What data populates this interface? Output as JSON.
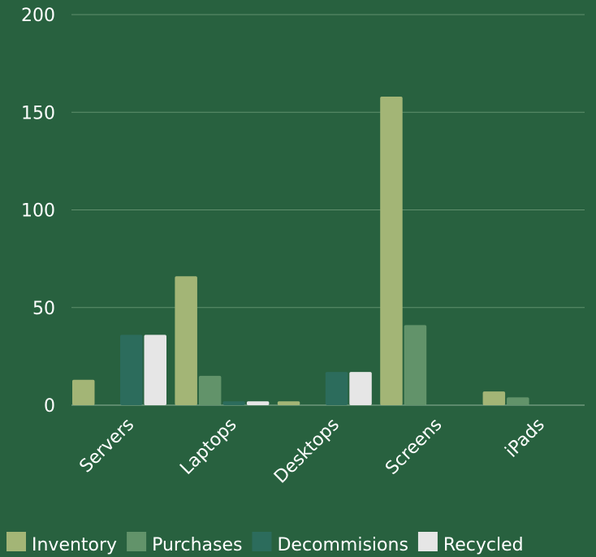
{
  "chart_data": {
    "type": "bar",
    "categories": [
      "Servers",
      "Laptops",
      "Desktops",
      "Screens",
      "iPads"
    ],
    "series": [
      {
        "name": "Inventory",
        "color": "#a3b576",
        "values": [
          13,
          66,
          2,
          158,
          7
        ]
      },
      {
        "name": "Purchases",
        "color": "#62936a",
        "values": [
          0,
          15,
          0,
          41,
          4
        ]
      },
      {
        "name": "Decommisions",
        "color": "#2c6c5c",
        "values": [
          36,
          2,
          17,
          0,
          0
        ]
      },
      {
        "name": "Recycled",
        "color": "#e6e6e6",
        "values": [
          36,
          2,
          17,
          0,
          0
        ]
      }
    ],
    "ylim": [
      0,
      200
    ],
    "yticks": [
      0,
      50,
      100,
      150,
      200
    ],
    "grid": true,
    "legend": "bottom"
  }
}
